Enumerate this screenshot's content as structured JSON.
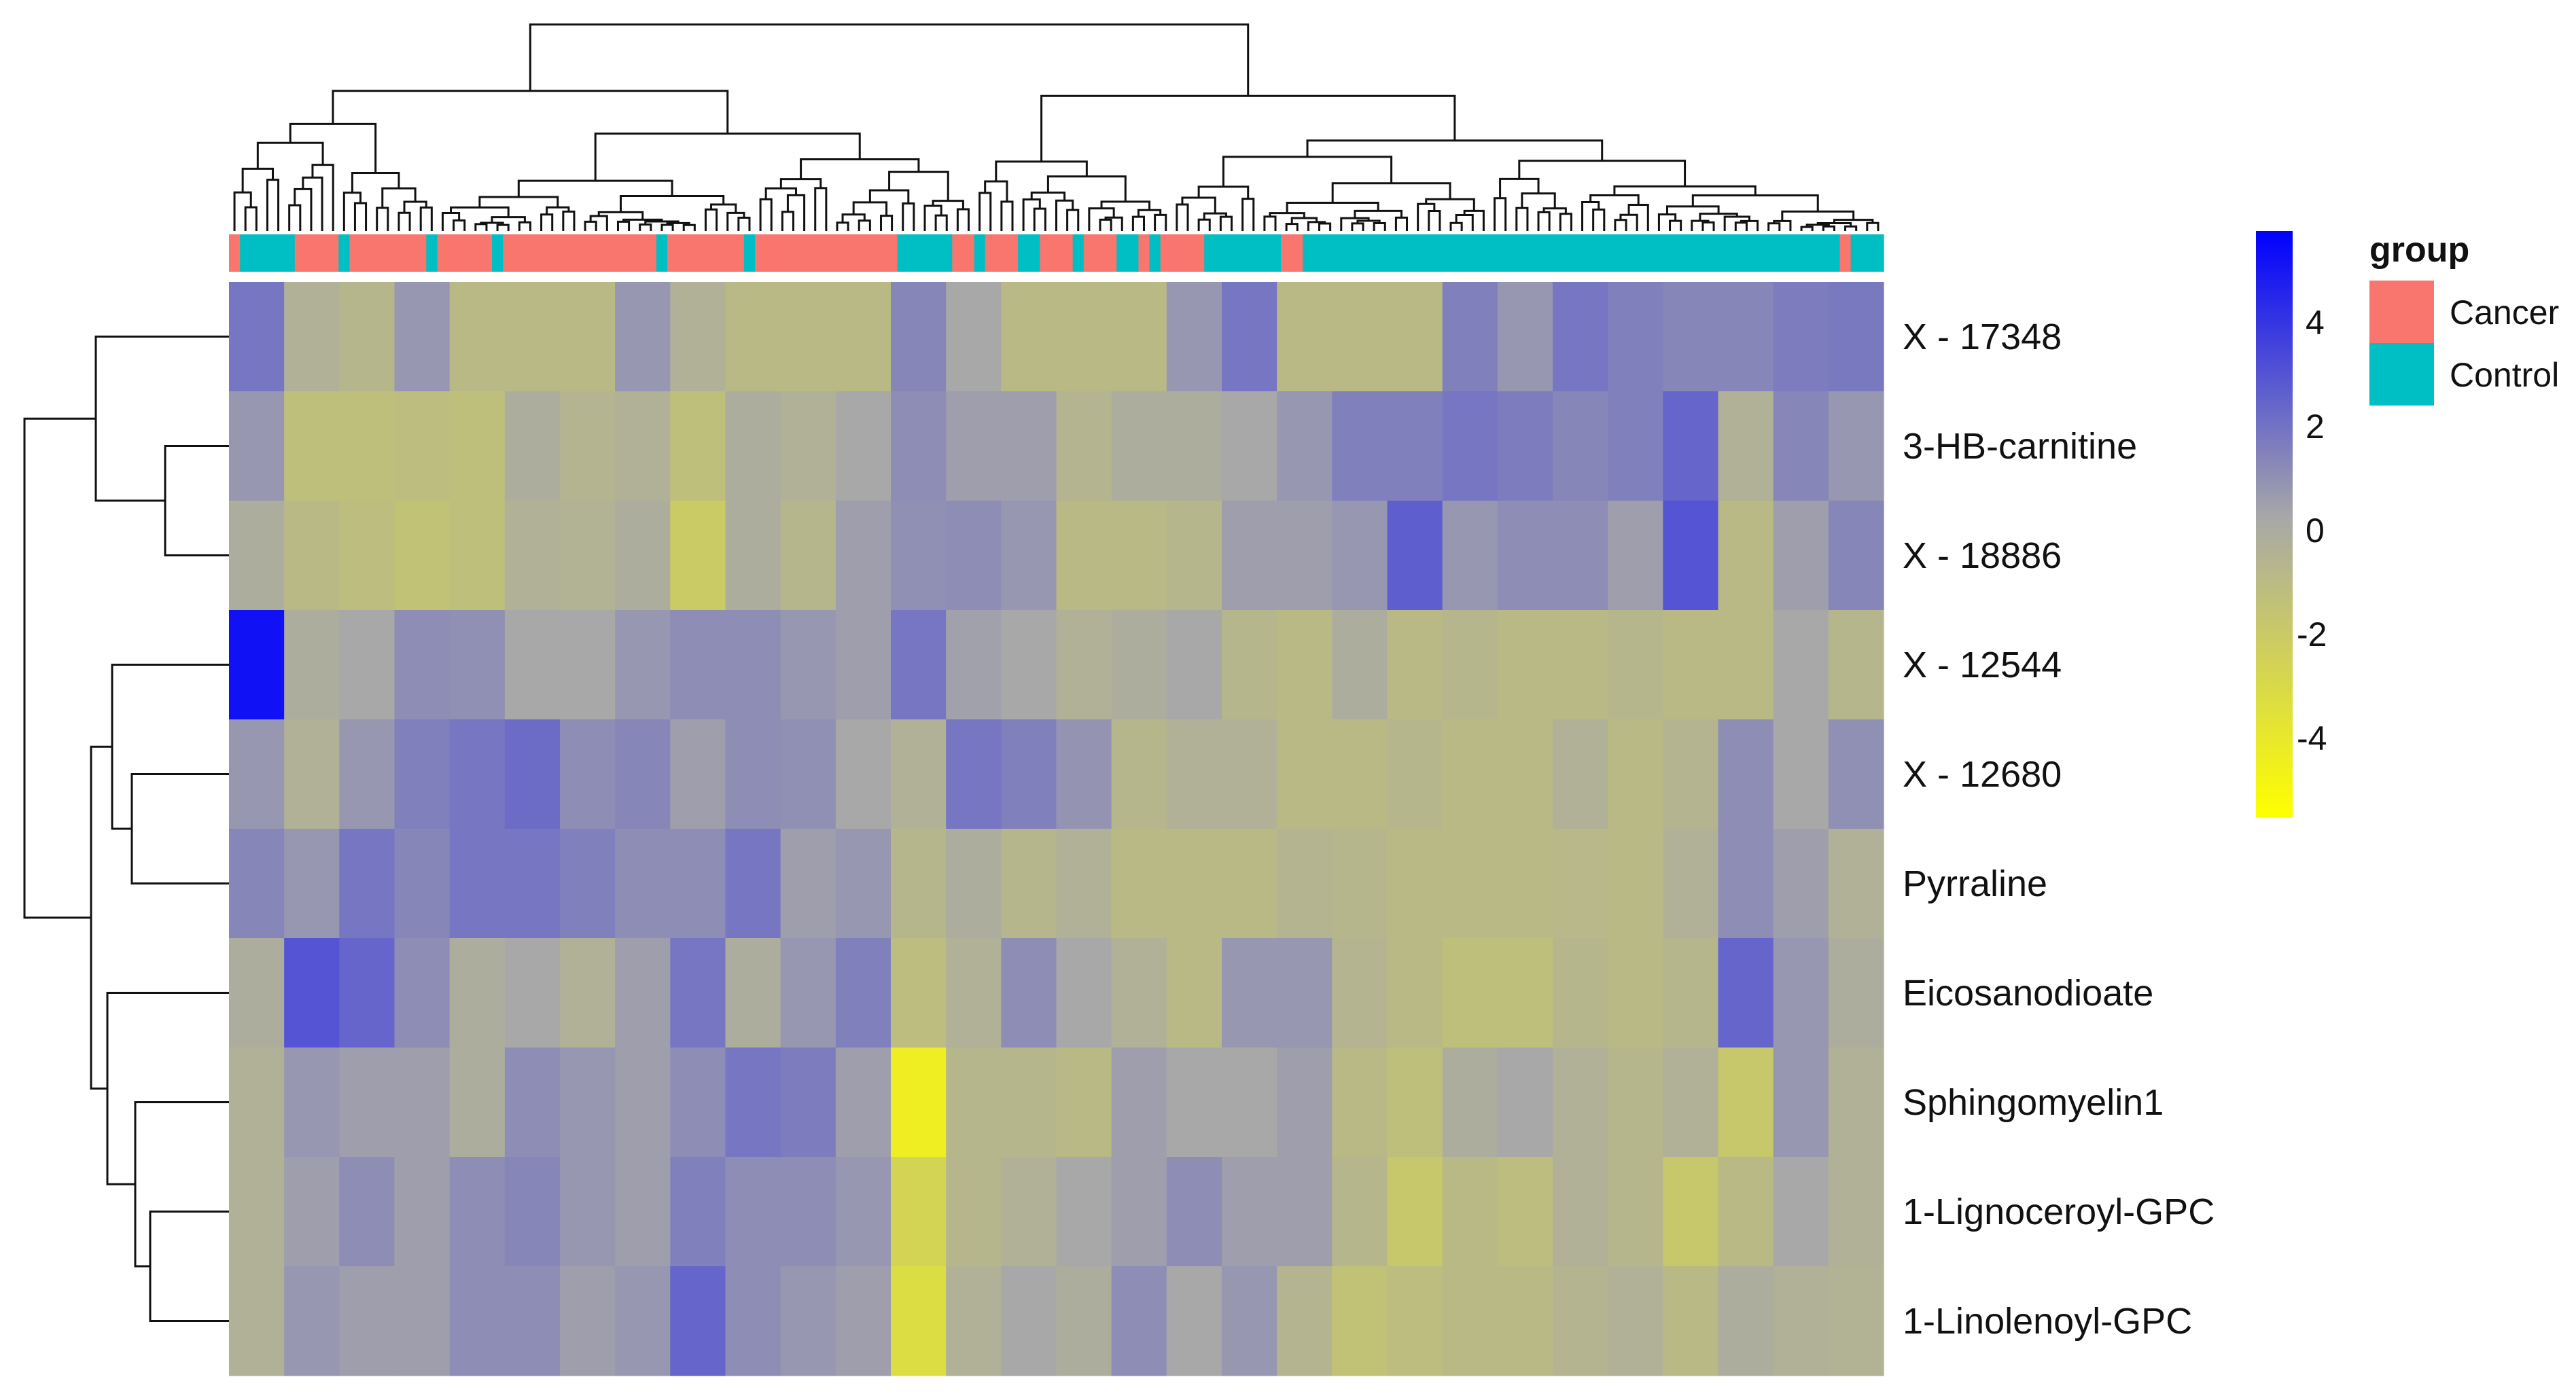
{
  "chart_data": {
    "type": "heatmap",
    "title": "",
    "rows": [
      "X - 17348",
      "3-HB-carnitine",
      "X - 18886",
      "X - 12544",
      "X - 12680",
      "Pyrraline",
      "Eicosanodioate",
      "Sphingomyelin1",
      "1-Lignoceroyl-GPC",
      "1-Linolenoyl-GPC"
    ],
    "column_blocks": 30,
    "values": [
      [
        1.5,
        -0.5,
        -0.8,
        0.5,
        -1,
        -1,
        -1,
        0.5,
        -0.5,
        -1,
        -1,
        -1,
        1,
        0,
        -1,
        -1,
        -1,
        0.5,
        1.5,
        -1,
        -1,
        -1,
        1.2,
        0.5,
        1.5,
        1.2,
        1,
        1,
        1.3,
        1.4
      ],
      [
        0.5,
        -1.3,
        -1.3,
        -1.2,
        -1.3,
        -0.3,
        -0.7,
        -0.5,
        -1.3,
        -0.3,
        -0.5,
        0,
        0.8,
        0.3,
        0.3,
        -0.7,
        -0.3,
        -0.3,
        0,
        0.5,
        1.2,
        1.2,
        1.5,
        1.3,
        1,
        1.2,
        2,
        -0.5,
        1,
        0.5
      ],
      [
        -0.3,
        -1,
        -1.2,
        -1.5,
        -1.3,
        -0.5,
        -0.6,
        -0.3,
        -2,
        -0.3,
        -0.8,
        0.3,
        0.7,
        0.8,
        0.5,
        -1,
        -1,
        -0.8,
        0.3,
        0.3,
        0.5,
        2.2,
        0.5,
        0.8,
        0.8,
        0.3,
        2.5,
        -1,
        0.3,
        1
      ],
      [
        4.5,
        -0.3,
        0,
        0.8,
        0.7,
        0,
        0,
        0.5,
        0.8,
        0.8,
        0.5,
        0.3,
        1.5,
        0.2,
        0,
        -0.5,
        -0.3,
        0,
        -0.8,
        -1,
        -0.3,
        -1,
        -0.8,
        -1,
        -1,
        -0.8,
        -1,
        -1,
        0,
        -0.8
      ],
      [
        0.5,
        -0.5,
        0.5,
        1.2,
        1.5,
        1.8,
        0.8,
        1,
        0.3,
        0.8,
        0.7,
        0,
        -0.5,
        1.5,
        1.2,
        0.6,
        -0.8,
        -0.5,
        -0.5,
        -1,
        -1,
        -0.8,
        -1,
        -1,
        -0.5,
        -1,
        -0.7,
        0.8,
        0,
        0.7
      ],
      [
        1,
        0.5,
        1.5,
        1,
        1.5,
        1.5,
        1.2,
        0.8,
        0.8,
        1.5,
        0.3,
        0.5,
        -0.8,
        -0.3,
        -0.8,
        -0.5,
        -1,
        -1,
        -1,
        -0.7,
        -0.8,
        -1,
        -1,
        -1,
        -0.9,
        -1,
        -0.5,
        0.8,
        0.3,
        -0.5
      ],
      [
        -0.3,
        2.5,
        2,
        0.8,
        -0.3,
        0,
        -0.5,
        0.3,
        1.5,
        -0.3,
        0.5,
        1.2,
        -1.2,
        -0.5,
        0.8,
        0,
        -0.5,
        -1,
        0.5,
        0.5,
        -0.7,
        -1,
        -1.3,
        -1.3,
        -0.8,
        -1,
        -0.8,
        2,
        0.5,
        -0.3
      ],
      [
        -0.5,
        0.5,
        0.3,
        0.3,
        -0.3,
        0.8,
        0.5,
        0.3,
        0.8,
        1.5,
        1.3,
        0.3,
        -4,
        -0.8,
        -0.8,
        -1,
        0.3,
        0,
        0,
        0.3,
        -1,
        -1.3,
        -0.3,
        0,
        -0.5,
        -0.8,
        -0.5,
        -1.8,
        0.5,
        -0.5
      ],
      [
        -0.5,
        0.3,
        0.8,
        0.3,
        0.8,
        1,
        0.5,
        0.3,
        1.2,
        0.8,
        0.8,
        0.5,
        -2.5,
        -0.8,
        -0.5,
        0,
        0.3,
        0.8,
        0.3,
        0.3,
        -0.8,
        -1.8,
        -1,
        -1.2,
        -0.5,
        -0.8,
        -1.8,
        -1,
        0,
        -0.5
      ],
      [
        -0.5,
        0.5,
        0.3,
        0.3,
        0.8,
        0.8,
        0.3,
        0.5,
        2,
        0.8,
        0.5,
        0.3,
        -3,
        -0.5,
        0,
        -0.3,
        0.8,
        0,
        0.5,
        -0.7,
        -1.5,
        -1.2,
        -1,
        -1,
        -0.7,
        -0.5,
        -1,
        -0.3,
        -0.5,
        -0.6
      ]
    ],
    "color_scale": {
      "min": -5.5,
      "max": 5.75,
      "low": "#ffff00",
      "mid": "#a8a8a8",
      "high": "#0000ff",
      "ticks": [
        "4",
        "2",
        "0",
        "-2",
        "-4"
      ],
      "tick_values": [
        4,
        2,
        0,
        -2,
        -4
      ]
    },
    "annotation": {
      "title": "group",
      "legend": [
        {
          "label": "Cancer",
          "color": "#f8766d"
        },
        {
          "label": "Control",
          "color": "#00bfc4"
        }
      ],
      "runs": [
        [
          "Cancer",
          1
        ],
        [
          "Control",
          5
        ],
        [
          "Cancer",
          4
        ],
        [
          "Control",
          1
        ],
        [
          "Cancer",
          7
        ],
        [
          "Control",
          1
        ],
        [
          "Cancer",
          5
        ],
        [
          "Control",
          1
        ],
        [
          "Cancer",
          14
        ],
        [
          "Control",
          1
        ],
        [
          "Cancer",
          7
        ],
        [
          "Control",
          1
        ],
        [
          "Cancer",
          13
        ],
        [
          "Control",
          5
        ],
        [
          "Cancer",
          2
        ],
        [
          "Control",
          1
        ],
        [
          "Cancer",
          3
        ],
        [
          "Control",
          2
        ],
        [
          "Cancer",
          3
        ],
        [
          "Control",
          1
        ],
        [
          "Cancer",
          3
        ],
        [
          "Control",
          2
        ],
        [
          "Cancer",
          1
        ],
        [
          "Control",
          1
        ],
        [
          "Cancer",
          4
        ],
        [
          "Control",
          7
        ],
        [
          "Cancer",
          2
        ],
        [
          "Control",
          49
        ],
        [
          "Cancer",
          1
        ],
        [
          "Control",
          3
        ]
      ]
    },
    "row_dendrogram": true,
    "column_dendrogram": true
  }
}
